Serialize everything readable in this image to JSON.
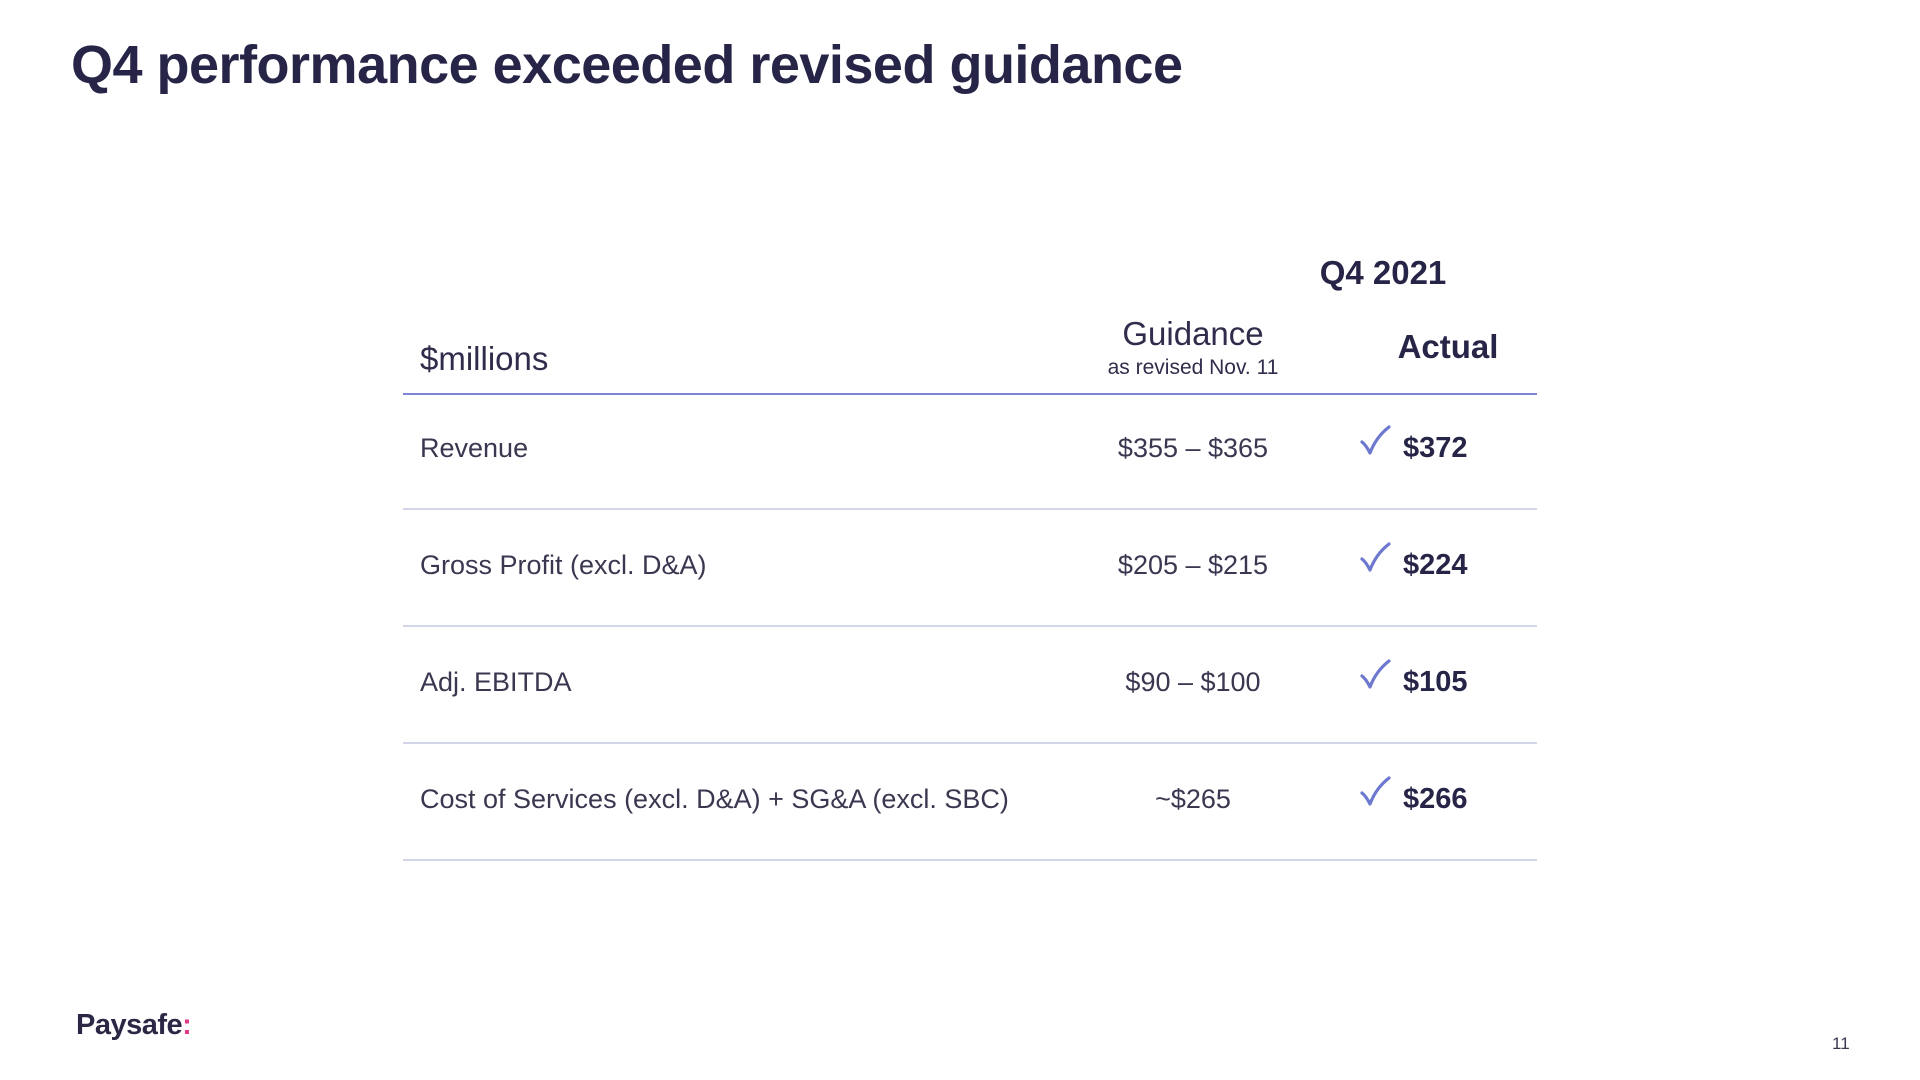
{
  "title": "Q4 performance exceeded revised guidance",
  "table": {
    "period": "Q4 2021",
    "units_label": "$millions",
    "guidance_label": "Guidance",
    "guidance_sublabel": "as revised Nov. 11",
    "actual_label": "Actual",
    "rows": [
      {
        "label": "Revenue",
        "guidance": "$355 – $365",
        "actual": "$372",
        "met": true
      },
      {
        "label": "Gross Profit (excl. D&A)",
        "guidance": "$205 – $215",
        "actual": "$224",
        "met": true
      },
      {
        "label": "Adj. EBITDA",
        "guidance": "$90 – $100",
        "actual": "$105",
        "met": true
      },
      {
        "label": "Cost of Services (excl. D&A) + SG&A (excl. SBC)",
        "guidance": "~$265",
        "actual": "$266",
        "met": true
      }
    ]
  },
  "footer": {
    "logo_text": "Paysafe",
    "logo_mark": ":",
    "page_number": "11"
  },
  "colors": {
    "title": "#272547",
    "header_rule": "#7b87d4",
    "row_rule": "#d3d6e8",
    "checkmark": "#6d78cf",
    "logo_accent": "#e03a86"
  },
  "icons": {
    "met_indicator": "checkmark-icon"
  }
}
